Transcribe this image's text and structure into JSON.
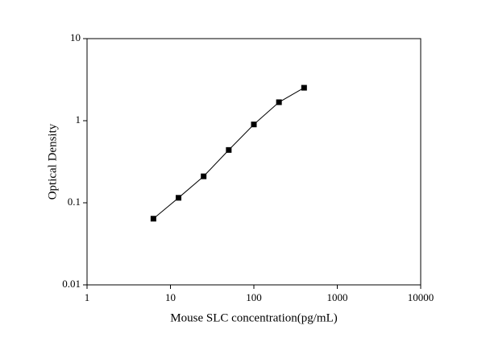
{
  "chart_data": {
    "type": "line",
    "xlabel": "Mouse SLC concentration(pg/mL)",
    "ylabel": "Optical Density",
    "x": [
      6.25,
      12.5,
      25,
      50,
      100,
      200,
      400
    ],
    "values": [
      0.064,
      0.115,
      0.21,
      0.44,
      0.9,
      1.68,
      2.52
    ],
    "color": "#000000",
    "xscale": "log",
    "yscale": "log",
    "xlim": [
      1,
      10000
    ],
    "ylim": [
      0.01,
      10
    ],
    "xticks": [
      1,
      10,
      100,
      1000,
      10000
    ],
    "yticks": [
      0.01,
      0.1,
      1,
      10
    ]
  }
}
